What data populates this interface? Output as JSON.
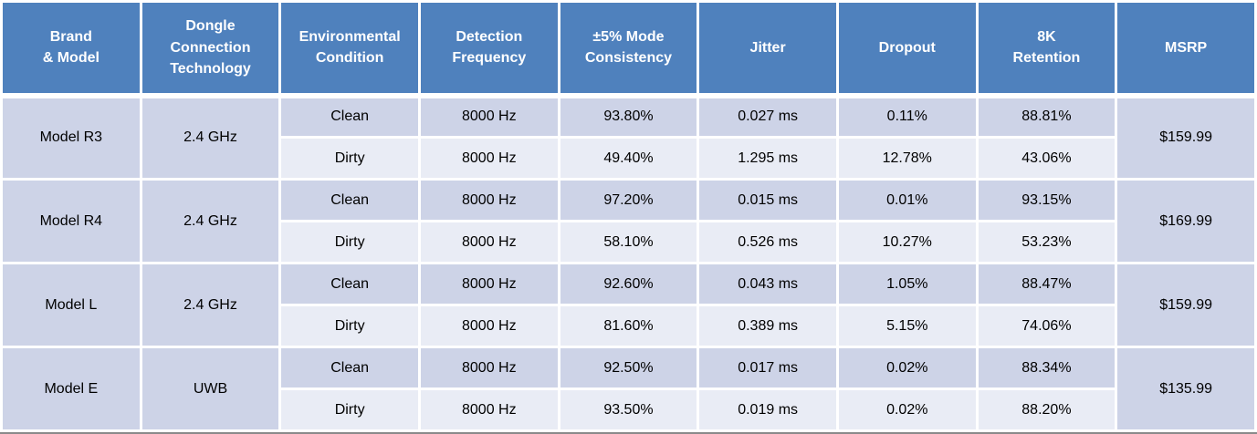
{
  "table": {
    "columns": [
      "Brand\n& Model",
      "Dongle\nConnection\nTechnology",
      "Environmental\nCondition",
      "Detection\nFrequency",
      "±5% Mode\nConsistency",
      "Jitter",
      "Dropout",
      "8K\nRetention",
      "MSRP"
    ],
    "groups": [
      {
        "brand": "Model R3",
        "technology": "2.4 GHz",
        "msrp": "$159.99",
        "rows": [
          {
            "condition": "Clean",
            "frequency": "8000 Hz",
            "consistency": "93.80%",
            "jitter": "0.027 ms",
            "dropout": "0.11%",
            "retention": "88.81%"
          },
          {
            "condition": "Dirty",
            "frequency": "8000 Hz",
            "consistency": "49.40%",
            "jitter": "1.295 ms",
            "dropout": "12.78%",
            "retention": "43.06%"
          }
        ]
      },
      {
        "brand": "Model R4",
        "technology": "2.4 GHz",
        "msrp": "$169.99",
        "rows": [
          {
            "condition": "Clean",
            "frequency": "8000 Hz",
            "consistency": "97.20%",
            "jitter": "0.015 ms",
            "dropout": "0.01%",
            "retention": "93.15%"
          },
          {
            "condition": "Dirty",
            "frequency": "8000 Hz",
            "consistency": "58.10%",
            "jitter": "0.526 ms",
            "dropout": "10.27%",
            "retention": "53.23%"
          }
        ]
      },
      {
        "brand": "Model L",
        "technology": "2.4 GHz",
        "msrp": "$159.99",
        "rows": [
          {
            "condition": "Clean",
            "frequency": "8000 Hz",
            "consistency": "92.60%",
            "jitter": "0.043 ms",
            "dropout": "1.05%",
            "retention": "88.47%"
          },
          {
            "condition": "Dirty",
            "frequency": "8000 Hz",
            "consistency": "81.60%",
            "jitter": "0.389 ms",
            "dropout": "5.15%",
            "retention": "74.06%"
          }
        ]
      },
      {
        "brand": "Model E",
        "technology": "UWB",
        "msrp": "$135.99",
        "rows": [
          {
            "condition": "Clean",
            "frequency": "8000 Hz",
            "consistency": "92.50%",
            "jitter": "0.017 ms",
            "dropout": "0.02%",
            "retention": "88.34%"
          },
          {
            "condition": "Dirty",
            "frequency": "8000 Hz",
            "consistency": "93.50%",
            "jitter": "0.019 ms",
            "dropout": "0.02%",
            "retention": "88.20%"
          }
        ]
      }
    ]
  },
  "chart_data": {
    "type": "table",
    "title": "",
    "columns": [
      "Brand & Model",
      "Dongle Connection Technology",
      "Environmental Condition",
      "Detection Frequency",
      "±5% Mode Consistency",
      "Jitter",
      "Dropout",
      "8K Retention",
      "MSRP"
    ],
    "rows": [
      [
        "Model R3",
        "2.4 GHz",
        "Clean",
        "8000 Hz",
        "93.80%",
        "0.027 ms",
        "0.11%",
        "88.81%",
        "$159.99"
      ],
      [
        "Model R3",
        "2.4 GHz",
        "Dirty",
        "8000 Hz",
        "49.40%",
        "1.295 ms",
        "12.78%",
        "43.06%",
        "$159.99"
      ],
      [
        "Model R4",
        "2.4 GHz",
        "Clean",
        "8000 Hz",
        "97.20%",
        "0.015 ms",
        "0.01%",
        "93.15%",
        "$169.99"
      ],
      [
        "Model R4",
        "2.4 GHz",
        "Dirty",
        "8000 Hz",
        "58.10%",
        "0.526 ms",
        "10.27%",
        "53.23%",
        "$169.99"
      ],
      [
        "Model L",
        "2.4 GHz",
        "Clean",
        "8000 Hz",
        "92.60%",
        "0.043 ms",
        "1.05%",
        "88.47%",
        "$159.99"
      ],
      [
        "Model L",
        "2.4 GHz",
        "Dirty",
        "8000 Hz",
        "81.60%",
        "0.389 ms",
        "5.15%",
        "74.06%",
        "$159.99"
      ],
      [
        "Model E",
        "UWB",
        "Clean",
        "8000 Hz",
        "92.50%",
        "0.017 ms",
        "0.02%",
        "88.34%",
        "$135.99"
      ],
      [
        "Model E",
        "UWB",
        "Dirty",
        "8000 Hz",
        "93.50%",
        "0.019 ms",
        "0.02%",
        "88.20%",
        "$135.99"
      ]
    ]
  },
  "colors": {
    "header_bg": "#4F81BD",
    "header_text": "#FFFFFF",
    "band_dark": "#CDD3E7",
    "band_light": "#E9ECF5",
    "border": "#FFFFFF",
    "bottom_border": "#8A8A8A",
    "body_text": "#000000"
  }
}
